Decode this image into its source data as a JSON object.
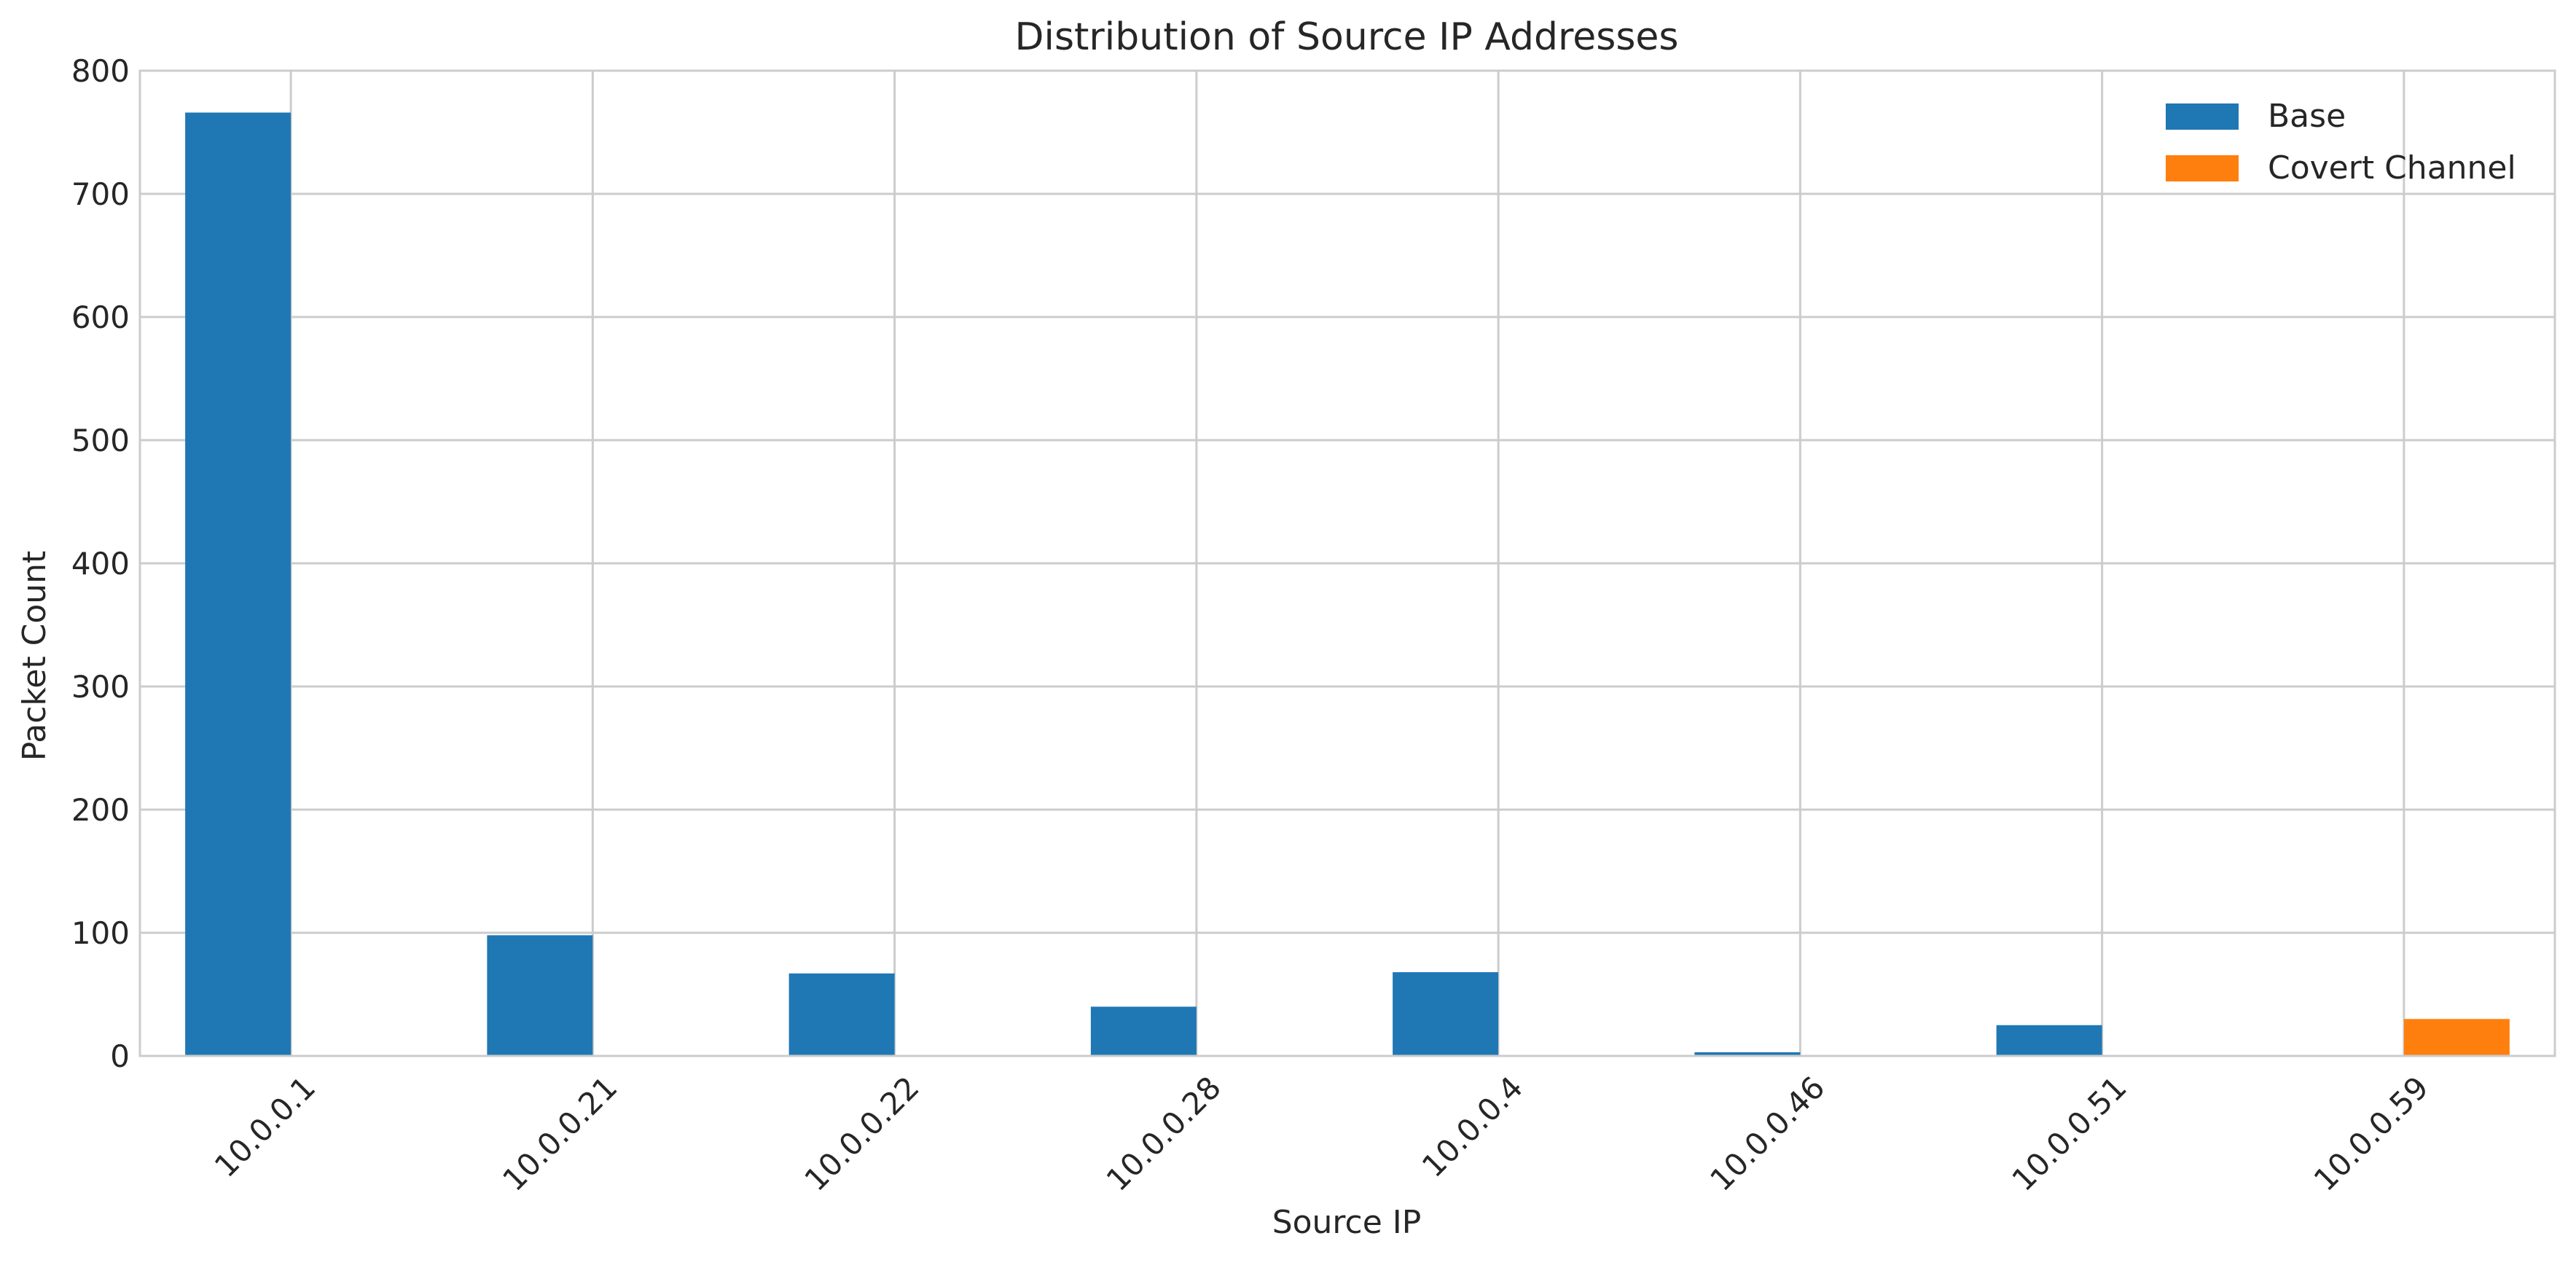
{
  "chart_data": {
    "type": "bar",
    "title": "Distribution of Source IP Addresses",
    "xlabel": "Source IP",
    "ylabel": "Packet Count",
    "categories": [
      "10.0.0.1",
      "10.0.0.21",
      "10.0.0.22",
      "10.0.0.28",
      "10.0.0.4",
      "10.0.0.46",
      "10.0.0.51",
      "10.0.0.59"
    ],
    "series": [
      {
        "name": "Base",
        "color": "#1f77b4",
        "values": [
          766,
          98,
          67,
          40,
          68,
          3,
          25,
          0
        ]
      },
      {
        "name": "Covert Channel",
        "color": "#ff7f0e",
        "values": [
          0,
          0,
          0,
          0,
          0,
          0,
          0,
          30
        ]
      }
    ],
    "ylim": [
      0,
      800
    ],
    "yticks": [
      0,
      100,
      200,
      300,
      400,
      500,
      600,
      700,
      800
    ],
    "grid": true,
    "legend_position": "top-right"
  }
}
